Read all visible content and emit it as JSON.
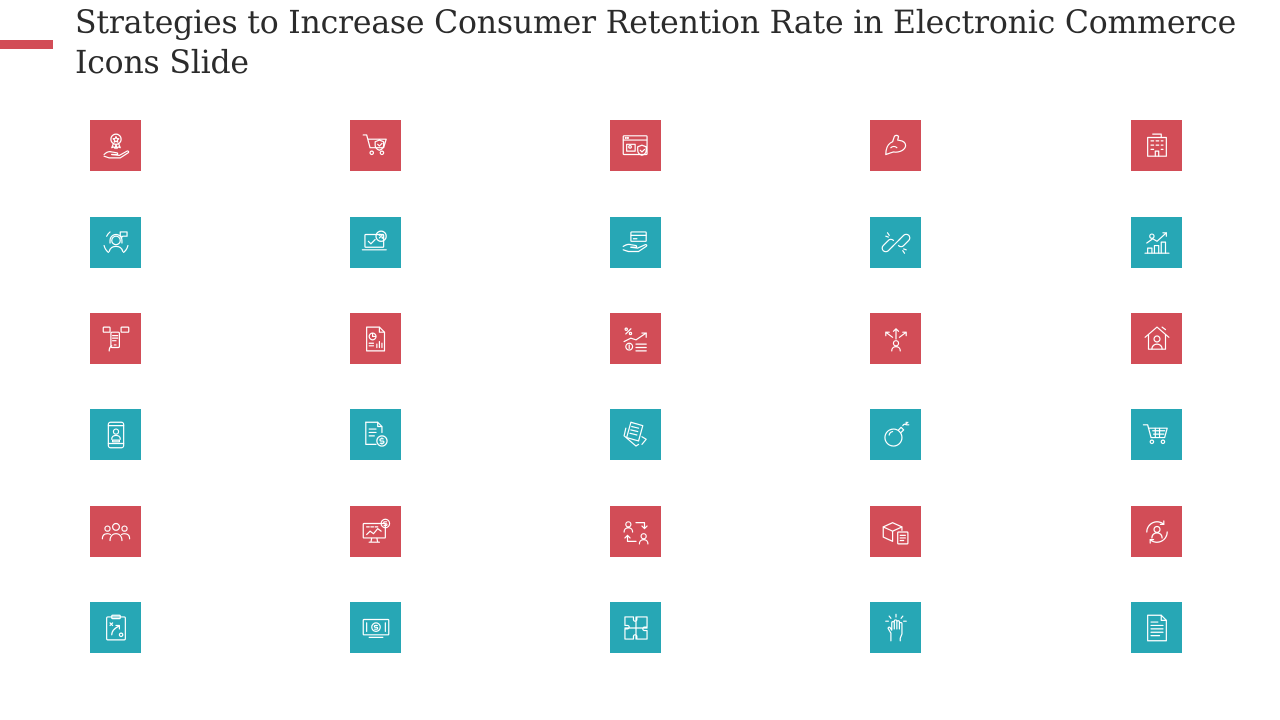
{
  "slide": {
    "title": "Strategies to Increase Consumer Retention Rate in Electronic Commerce Icons Slide"
  },
  "colors": {
    "accent": "#d24d57",
    "red_tile": "#d24d57",
    "teal_tile": "#27a7b5",
    "icon_stroke": "#ffffff"
  },
  "icons": [
    {
      "name": "hand-award-icon",
      "color": "red"
    },
    {
      "name": "shopping-cart-shield-icon",
      "color": "red"
    },
    {
      "name": "browser-security-icon",
      "color": "red"
    },
    {
      "name": "arm-strength-icon",
      "color": "red"
    },
    {
      "name": "office-building-icon",
      "color": "red"
    },
    {
      "name": "customer-support-icon",
      "color": "teal"
    },
    {
      "name": "laptop-discount-icon",
      "color": "teal"
    },
    {
      "name": "hand-card-icon",
      "color": "teal"
    },
    {
      "name": "broken-link-icon",
      "color": "teal"
    },
    {
      "name": "growth-chart-icon",
      "color": "teal"
    },
    {
      "name": "hand-phone-chat-icon",
      "color": "red"
    },
    {
      "name": "report-analysis-icon",
      "color": "red"
    },
    {
      "name": "discount-growth-icon",
      "color": "red"
    },
    {
      "name": "decision-arrows-icon",
      "color": "red"
    },
    {
      "name": "home-person-icon",
      "color": "red"
    },
    {
      "name": "mobile-user-icon",
      "color": "teal"
    },
    {
      "name": "document-dollar-icon",
      "color": "teal"
    },
    {
      "name": "documents-icon",
      "color": "teal"
    },
    {
      "name": "bomb-icon",
      "color": "teal"
    },
    {
      "name": "shopping-cart-icon",
      "color": "teal"
    },
    {
      "name": "team-group-icon",
      "color": "red"
    },
    {
      "name": "monitor-finance-icon",
      "color": "red"
    },
    {
      "name": "people-exchange-icon",
      "color": "red"
    },
    {
      "name": "package-checklist-icon",
      "color": "red"
    },
    {
      "name": "user-refresh-icon",
      "color": "red"
    },
    {
      "name": "clipboard-strategy-icon",
      "color": "teal"
    },
    {
      "name": "money-icon",
      "color": "teal"
    },
    {
      "name": "puzzle-icon",
      "color": "teal"
    },
    {
      "name": "hand-burst-icon",
      "color": "teal"
    },
    {
      "name": "document-icon",
      "color": "teal"
    }
  ]
}
